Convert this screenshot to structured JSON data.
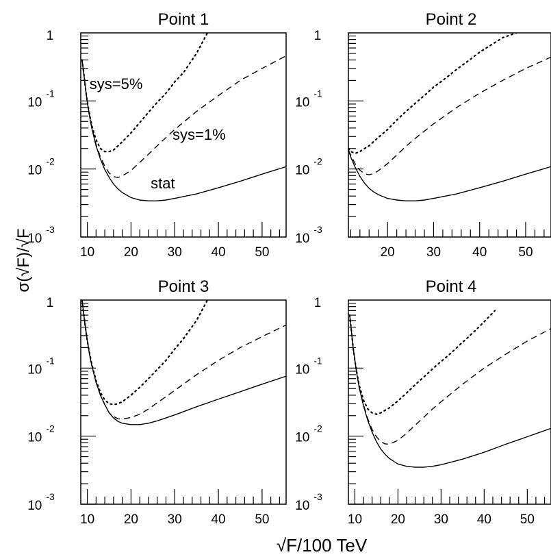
{
  "figure": {
    "xlabel": "√F/100 TeV",
    "ylabel": "σ(√F)/√F",
    "y_ticks": [
      {
        "base": "10",
        "exp": "-3"
      },
      {
        "base": "10",
        "exp": "-2"
      },
      {
        "base": "10",
        "exp": "-1"
      },
      {
        "base": "1",
        "exp": ""
      }
    ]
  },
  "chart_data": [
    {
      "type": "line",
      "title": "Point 1",
      "xlim": [
        8.5,
        55.5
      ],
      "ylim": [
        0.001,
        1
      ],
      "yscale": "log",
      "xticks": [
        10,
        20,
        30,
        40,
        50
      ],
      "annotations": [
        {
          "text": "sys=5%",
          "x": 10.5,
          "y": 0.15
        },
        {
          "text": "sys=1%",
          "x": 29.5,
          "y": 0.027
        },
        {
          "text": "stat",
          "x": 24.5,
          "y": 0.0052
        }
      ],
      "series": [
        {
          "style": "solid",
          "x": [
            8.8,
            9.2,
            9.6,
            10,
            10.5,
            11,
            12,
            13,
            14,
            15,
            16,
            17,
            18,
            20,
            22,
            24,
            26,
            28,
            30,
            35,
            40,
            45,
            50,
            55.5
          ],
          "y": [
            0.4,
            0.25,
            0.15,
            0.095,
            0.06,
            0.04,
            0.022,
            0.014,
            0.0098,
            0.0075,
            0.006,
            0.0051,
            0.0045,
            0.0038,
            0.0035,
            0.0034,
            0.0034,
            0.0035,
            0.0037,
            0.0043,
            0.0053,
            0.0066,
            0.0084,
            0.0108
          ]
        },
        {
          "style": "dashed",
          "x": [
            8.8,
            9.2,
            9.6,
            10,
            10.5,
            11,
            12,
            13,
            14,
            15,
            16,
            17,
            18,
            20,
            22,
            24,
            26,
            28,
            30,
            35,
            40,
            45,
            50,
            55.5
          ],
          "y": [
            0.4,
            0.25,
            0.15,
            0.096,
            0.061,
            0.041,
            0.023,
            0.015,
            0.011,
            0.0087,
            0.0077,
            0.0075,
            0.0079,
            0.0095,
            0.0125,
            0.0165,
            0.022,
            0.029,
            0.038,
            0.07,
            0.12,
            0.2,
            0.3,
            0.46
          ]
        },
        {
          "style": "dotted",
          "x": [
            8.8,
            9.2,
            9.6,
            10,
            10.5,
            11,
            11.5,
            12,
            13,
            14,
            15,
            16,
            18,
            20,
            22,
            24,
            26,
            28,
            30,
            32,
            35,
            37.5
          ],
          "y": [
            0.4,
            0.25,
            0.15,
            0.097,
            0.063,
            0.044,
            0.034,
            0.027,
            0.02,
            0.018,
            0.018,
            0.019,
            0.025,
            0.034,
            0.048,
            0.068,
            0.095,
            0.13,
            0.19,
            0.26,
            0.5,
            1.0
          ]
        }
      ]
    },
    {
      "type": "line",
      "title": "Point 2",
      "xlim": [
        11.5,
        55.5
      ],
      "ylim": [
        0.001,
        1
      ],
      "yscale": "log",
      "xticks": [
        20,
        30,
        40,
        50
      ],
      "annotations": [],
      "series": [
        {
          "style": "solid",
          "x": [
            11.5,
            12,
            13,
            14,
            15,
            16,
            17,
            18,
            20,
            22,
            24,
            26,
            28,
            30,
            35,
            40,
            45,
            50,
            55.5
          ],
          "y": [
            0.019,
            0.015,
            0.0105,
            0.0078,
            0.0062,
            0.0052,
            0.0046,
            0.0042,
            0.0037,
            0.0035,
            0.0034,
            0.0034,
            0.0035,
            0.0037,
            0.0043,
            0.0053,
            0.0066,
            0.0084,
            0.0108
          ]
        },
        {
          "style": "dashed",
          "x": [
            11.5,
            12,
            13,
            14,
            15,
            16,
            17,
            18,
            20,
            22,
            24,
            26,
            28,
            30,
            35,
            40,
            45,
            50,
            55.5
          ],
          "y": [
            0.019,
            0.016,
            0.0118,
            0.0096,
            0.0085,
            0.0082,
            0.0086,
            0.0094,
            0.012,
            0.016,
            0.0215,
            0.028,
            0.036,
            0.046,
            0.08,
            0.13,
            0.2,
            0.3,
            0.44
          ]
        },
        {
          "style": "dotted",
          "x": [
            11.5,
            12,
            13,
            14,
            15,
            16,
            18,
            20,
            22,
            24,
            26,
            28,
            30,
            32,
            35,
            38,
            40,
            45,
            48
          ],
          "y": [
            0.02,
            0.018,
            0.017,
            0.018,
            0.02,
            0.022,
            0.029,
            0.038,
            0.052,
            0.07,
            0.092,
            0.12,
            0.16,
            0.2,
            0.29,
            0.41,
            0.52,
            0.85,
            1.0
          ]
        }
      ]
    },
    {
      "type": "line",
      "title": "Point 3",
      "xlim": [
        8.5,
        55.5
      ],
      "ylim": [
        0.001,
        1
      ],
      "yscale": "log",
      "xticks": [
        10,
        20,
        30,
        40,
        50
      ],
      "annotations": [],
      "series": [
        {
          "style": "solid",
          "x": [
            8.8,
            9.2,
            9.6,
            10,
            10.5,
            11,
            12,
            13,
            14,
            15,
            16,
            17,
            18,
            20,
            22,
            24,
            26,
            28,
            30,
            35,
            40,
            45,
            50,
            55.5
          ],
          "y": [
            1.0,
            0.6,
            0.38,
            0.25,
            0.16,
            0.11,
            0.062,
            0.04,
            0.029,
            0.022,
            0.0185,
            0.0165,
            0.0155,
            0.0148,
            0.0148,
            0.0155,
            0.0168,
            0.0185,
            0.0205,
            0.027,
            0.035,
            0.045,
            0.058,
            0.076
          ]
        },
        {
          "style": "dashed",
          "x": [
            8.8,
            9.2,
            9.6,
            10,
            10.5,
            11,
            12,
            13,
            14,
            15,
            16,
            17,
            18,
            20,
            22,
            24,
            26,
            28,
            30,
            35,
            40,
            45,
            50,
            55.5
          ],
          "y": [
            1.0,
            0.6,
            0.38,
            0.25,
            0.16,
            0.11,
            0.062,
            0.04,
            0.029,
            0.022,
            0.0195,
            0.018,
            0.0178,
            0.0188,
            0.021,
            0.025,
            0.031,
            0.038,
            0.047,
            0.08,
            0.13,
            0.2,
            0.29,
            0.43
          ]
        },
        {
          "style": "dotted",
          "x": [
            8.8,
            9.2,
            9.6,
            10,
            10.5,
            11,
            12,
            13,
            14,
            15,
            16,
            17,
            18,
            20,
            22,
            24,
            26,
            28,
            30,
            32,
            35,
            37.5
          ],
          "y": [
            1.0,
            0.6,
            0.38,
            0.25,
            0.165,
            0.115,
            0.066,
            0.044,
            0.034,
            0.03,
            0.029,
            0.03,
            0.032,
            0.04,
            0.052,
            0.07,
            0.095,
            0.13,
            0.19,
            0.27,
            0.5,
            1.0
          ]
        }
      ]
    },
    {
      "type": "line",
      "title": "Point 4",
      "xlim": [
        8.5,
        55.5
      ],
      "ylim": [
        0.001,
        1
      ],
      "yscale": "log",
      "xticks": [
        10,
        20,
        30,
        40,
        50
      ],
      "annotations": [],
      "series": [
        {
          "style": "solid",
          "x": [
            8.8,
            9.2,
            9.6,
            10,
            10.5,
            11,
            12,
            13,
            14,
            15,
            16,
            17,
            18,
            20,
            22,
            24,
            26,
            28,
            30,
            35,
            40,
            45,
            50,
            55.5
          ],
          "y": [
            0.6,
            0.35,
            0.2,
            0.13,
            0.08,
            0.052,
            0.028,
            0.017,
            0.0115,
            0.0083,
            0.0065,
            0.0054,
            0.0047,
            0.0039,
            0.0036,
            0.0035,
            0.0035,
            0.0036,
            0.0038,
            0.0046,
            0.0058,
            0.0076,
            0.0098,
            0.013
          ]
        },
        {
          "style": "dashed",
          "x": [
            8.8,
            9.2,
            9.6,
            10,
            10.5,
            11,
            12,
            13,
            14,
            15,
            16,
            17,
            18,
            20,
            22,
            24,
            26,
            28,
            30,
            35,
            40,
            45,
            50,
            55.5
          ],
          "y": [
            0.6,
            0.35,
            0.2,
            0.13,
            0.08,
            0.053,
            0.029,
            0.018,
            0.0125,
            0.0098,
            0.0083,
            0.0077,
            0.0076,
            0.0087,
            0.011,
            0.0145,
            0.019,
            0.025,
            0.032,
            0.058,
            0.1,
            0.16,
            0.25,
            0.38
          ]
        },
        {
          "style": "dotted",
          "x": [
            8.8,
            9.2,
            9.6,
            10,
            10.5,
            11,
            12,
            13,
            14,
            15,
            16,
            18,
            20,
            22,
            24,
            26,
            28,
            30,
            32,
            35,
            38,
            40,
            42.5
          ],
          "y": [
            0.6,
            0.35,
            0.2,
            0.13,
            0.082,
            0.056,
            0.034,
            0.025,
            0.022,
            0.021,
            0.022,
            0.026,
            0.033,
            0.043,
            0.057,
            0.074,
            0.097,
            0.125,
            0.16,
            0.24,
            0.36,
            0.48,
            0.7
          ]
        }
      ]
    }
  ]
}
